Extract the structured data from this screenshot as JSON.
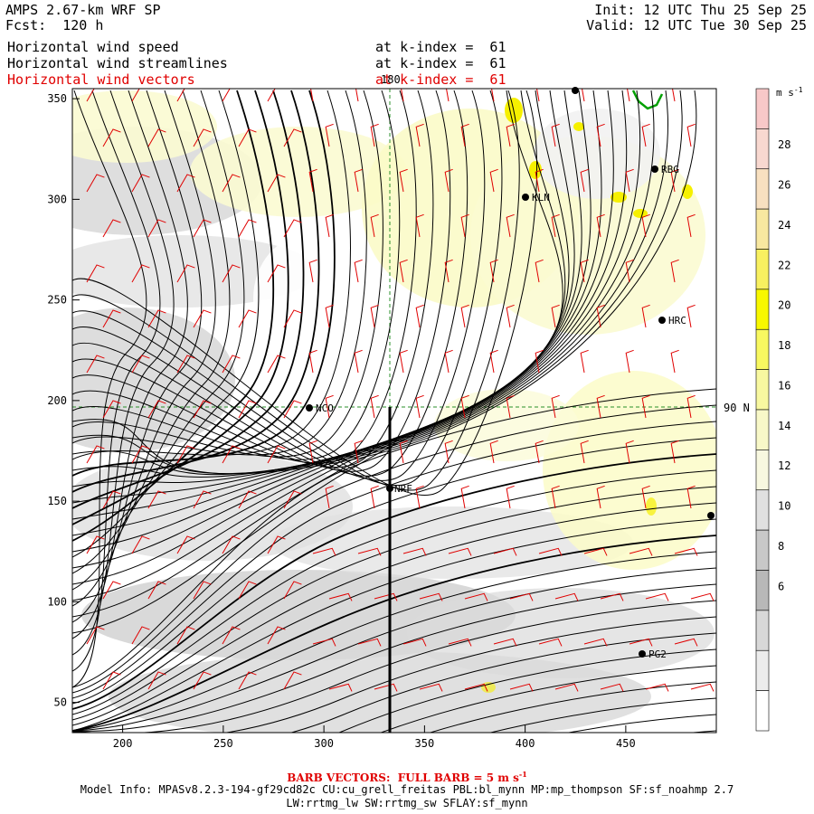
{
  "header": {
    "title": "AMPS 2.67-km WRF SP",
    "forecast": "Fcst:  120 h",
    "init": "Init: 12 UTC Thu 25 Sep 25",
    "valid": "Valid: 12 UTC Tue 30 Sep 25",
    "fields": [
      {
        "label": "Horizontal wind speed",
        "level": "at k-index =  61",
        "color": "#000000"
      },
      {
        "label": "Horizontal wind streamlines",
        "level": "at k-index =  61",
        "color": "#000000"
      },
      {
        "label": "Horizontal wind vectors",
        "level": "at k-index =  61",
        "color": "#e00000"
      }
    ]
  },
  "map": {
    "x_ticks": [
      "200",
      "250",
      "300",
      "350",
      "400",
      "450"
    ],
    "y_ticks": [
      "350",
      "300",
      "250",
      "200",
      "150",
      "100",
      "50"
    ],
    "lon_label": "180",
    "lat_label": "90 N",
    "stations": [
      {
        "id": "NCO",
        "label": "NCO"
      },
      {
        "id": "KLN",
        "label": "KLN"
      },
      {
        "id": "RBG",
        "label": "RBG"
      },
      {
        "id": "HRC",
        "label": "HRC"
      },
      {
        "id": "PG2",
        "label": "PG2"
      },
      {
        "id": "NRF",
        "label": "NRF"
      }
    ]
  },
  "colorbar": {
    "unit": "m s-1",
    "ticks": [
      "28",
      "26",
      "24",
      "22",
      "20",
      "18",
      "16",
      "14",
      "12",
      "10",
      "8",
      "6"
    ],
    "colors": [
      "#f8c8c8",
      "#f8d8d0",
      "#f8e0c0",
      "#f8e8a0",
      "#f8f060",
      "#f8f800",
      "#f8f860",
      "#f8f8a0",
      "#f8f8c8",
      "#f8f8e0",
      "#e0e0e0",
      "#c8c8c8",
      "#b8b8b8",
      "#d8d8d8",
      "#ececec",
      "#ffffff"
    ]
  },
  "footer": {
    "barb_note": "BARB VECTORS:  FULL BARB = 5 m s",
    "barb_sup": "-1",
    "model_line1": "Model Info: MPASv8.2.3-194-gf29cd82c CU:cu_grell_freitas PBL:bl_mynn MP:mp_thompson SF:sf_noahmp 2.7",
    "model_line2": "LW:rrtmg_lw SW:rrtmg_sw SFLAY:sf_mynn"
  }
}
